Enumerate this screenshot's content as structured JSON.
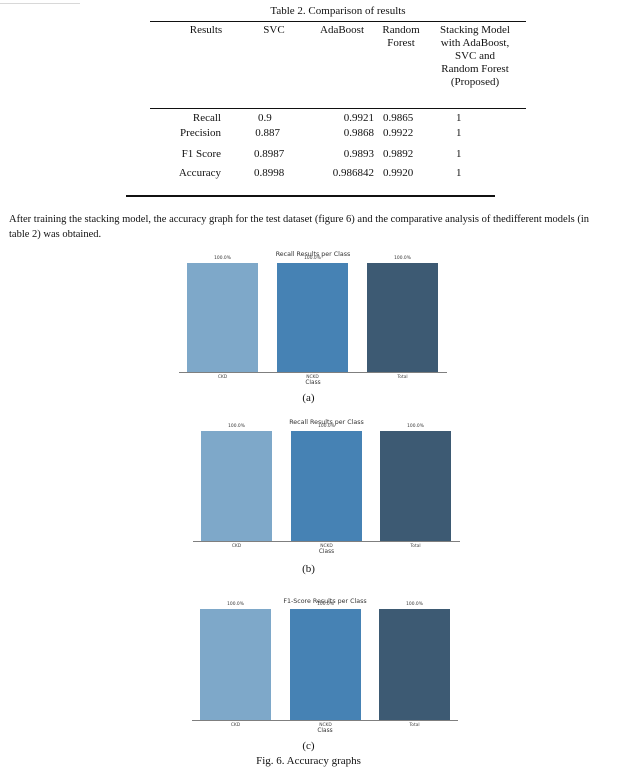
{
  "table": {
    "caption": "Table 2. Comparison of results",
    "headers": {
      "results": "Results",
      "svc": "SVC",
      "adaboost": "AdaBoost",
      "rf_line1": "Random",
      "rf_line2": "Forest",
      "stack_line1": "Stacking Model",
      "stack_line2": "with AdaBoost,",
      "stack_line3": "SVC and",
      "stack_line4": "Random Forest",
      "stack_line5": "(Proposed)"
    },
    "rows": [
      {
        "metric": "Recall",
        "svc": "0.9",
        "adaboost": "0.9921",
        "rf": "0.9865",
        "stack": "1"
      },
      {
        "metric": "Precision",
        "svc": "0.887",
        "adaboost": "0.9868",
        "rf": "0.9922",
        "stack": "1"
      },
      {
        "metric": "F1 Score",
        "svc": "0.8987",
        "adaboost": "0.9893",
        "rf": "0.9892",
        "stack": "1"
      },
      {
        "metric": "Accuracy",
        "svc": "0.8998",
        "adaboost": "0.986842",
        "rf": "0.9920",
        "stack": "1"
      }
    ]
  },
  "paragraph": "After training the stacking model, the accuracy graph for the test dataset (figure 6) and the comparative analysis of thedifferent models (in table 2) was obtained.",
  "colors": {
    "bar1": "#7ea8c9",
    "bar2": "#4682b4",
    "bar3": "#3d5a73",
    "axis": "#555555"
  },
  "chart_data": [
    {
      "type": "bar",
      "title": "Recall Results per Class",
      "xlabel": "Class",
      "categories": [
        "CKD",
        "NCKD",
        "Total"
      ],
      "values": [
        100.0,
        100.0,
        100.0
      ],
      "value_labels": [
        "100.0%",
        "100.0%",
        "100.0%"
      ],
      "ylim": [
        0,
        100
      ],
      "grid": false,
      "sublabel": "(a)"
    },
    {
      "type": "bar",
      "title": "Recall Results per Class",
      "xlabel": "Class",
      "categories": [
        "CKD",
        "NCKD",
        "Total"
      ],
      "values": [
        100.0,
        100.0,
        100.0
      ],
      "value_labels": [
        "100.0%",
        "100.0%",
        "100.0%"
      ],
      "ylim": [
        0,
        100
      ],
      "grid": false,
      "sublabel": "(b)"
    },
    {
      "type": "bar",
      "title": "F1-Score Results per Class",
      "xlabel": "Class",
      "categories": [
        "CKD",
        "NCKD",
        "Total"
      ],
      "values": [
        100.0,
        100.0,
        100.0
      ],
      "value_labels": [
        "100.0%",
        "100.0%",
        "100.0%"
      ],
      "ylim": [
        0,
        100
      ],
      "grid": false,
      "sublabel": "(c)"
    }
  ],
  "figure_caption": "Fig. 6. Accuracy graphs"
}
